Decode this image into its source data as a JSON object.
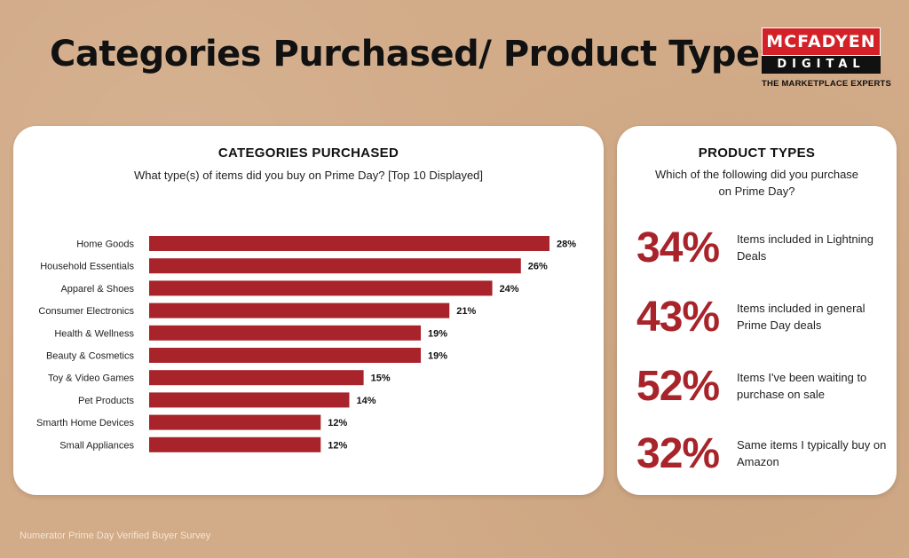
{
  "page_title": "Categories Purchased/ Product Types",
  "logo": {
    "top": "MCFADYEN",
    "bottom": "DIGITAL",
    "tagline": "THE MARKETPLACE EXPERTS"
  },
  "left_card": {
    "title": "CATEGORIES PURCHASED",
    "subtitle": "What type(s) of items did you buy on Prime Day? [Top 10 Displayed]"
  },
  "right_card": {
    "title": "PRODUCT TYPES",
    "subtitle": "Which of the following did you purchase on Prime Day?",
    "stats": [
      {
        "value": "34%",
        "label": "Items included in Lightning Deals"
      },
      {
        "value": "43%",
        "label": "Items included in general Prime Day deals"
      },
      {
        "value": "52%",
        "label": "Items I've been waiting to purchase on sale"
      },
      {
        "value": "32%",
        "label": "Same items I typically buy on Amazon"
      }
    ]
  },
  "footnote": "Numerator Prime Day Verified Buyer Survey",
  "colors": {
    "bar": "#a8232a",
    "accent": "#a8232a",
    "brand_red": "#d42027",
    "background": "#d2ab88"
  },
  "chart_data": {
    "type": "bar",
    "orientation": "horizontal",
    "title": "CATEGORIES PURCHASED",
    "categories": [
      "Home Goods",
      "Household Essentials",
      "Apparel & Shoes",
      "Consumer Electronics",
      "Health & Wellness",
      "Beauty & Cosmetics",
      "Toy & Video Games",
      "Pet Products",
      "Smarth Home Devices",
      "Small Appliances"
    ],
    "values": [
      28,
      26,
      24,
      21,
      19,
      19,
      15,
      14,
      12,
      12
    ],
    "value_labels": [
      "28%",
      "26%",
      "24%",
      "21%",
      "19%",
      "19%",
      "15%",
      "14%",
      "12%",
      "12%"
    ],
    "unit": "%",
    "xlim": [
      0,
      28
    ],
    "grid": false,
    "legend": "none"
  }
}
